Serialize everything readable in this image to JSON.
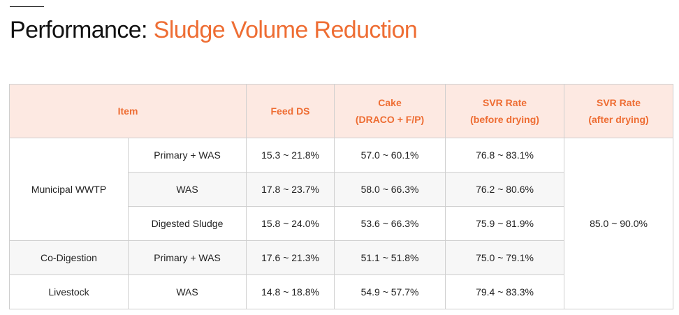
{
  "title": {
    "lead": "Performance:",
    "accent": "Sludge Volume Reduction"
  },
  "colors": {
    "accent": "#ee6d33",
    "header_bg": "#fde9e2",
    "row_shade": "#f7f7f7",
    "border": "#cfcfcf"
  },
  "table": {
    "headers": {
      "item": "Item",
      "feed_ds": "Feed DS",
      "cake_line1": "Cake",
      "cake_line2": "(DRACO + F/P)",
      "svr_before_line1": "SVR Rate",
      "svr_before_line2": "(before drying)",
      "svr_after_line1": "SVR Rate",
      "svr_after_line2": "(after drying)"
    },
    "groups": {
      "municipal": "Municipal WWTP",
      "codigestion": "Co-Digestion",
      "livestock": "Livestock"
    },
    "rows": [
      {
        "sub": "Primary + WAS",
        "feed_ds": "15.3 ~ 21.8%",
        "cake": "57.0 ~ 60.1%",
        "svr_before": "76.8 ~ 83.1%"
      },
      {
        "sub": "WAS",
        "feed_ds": "17.8 ~ 23.7%",
        "cake": "58.0 ~ 66.3%",
        "svr_before": "76.2 ~ 80.6%"
      },
      {
        "sub": "Digested Sludge",
        "feed_ds": "15.8 ~ 24.0%",
        "cake": "53.6 ~ 66.3%",
        "svr_before": "75.9 ~ 81.9%"
      },
      {
        "sub": "Primary + WAS",
        "feed_ds": "17.6 ~ 21.3%",
        "cake": "51.1 ~ 51.8%",
        "svr_before": "75.0 ~ 79.1%"
      },
      {
        "sub": "WAS",
        "feed_ds": "14.8 ~ 18.8%",
        "cake": "54.9 ~ 57.7%",
        "svr_before": "79.4 ~ 83.3%"
      }
    ],
    "svr_after_all": "85.0 ~ 90.0%"
  }
}
